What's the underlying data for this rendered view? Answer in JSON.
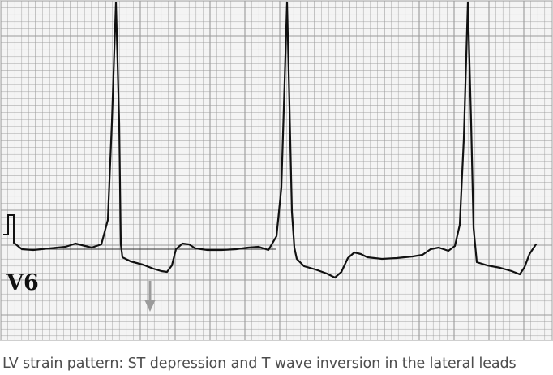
{
  "strip": {
    "lead_label": "V6"
  },
  "caption": {
    "text": "LV strain pattern: ST depression and T wave inversion in the lateral leads"
  },
  "colors": {
    "paper": "#f4f4f4",
    "grid": "#9a9a9a",
    "trace": "#111111",
    "arrow": "#9b9b9b",
    "caption_text": "#4d4d4d"
  },
  "icons": {
    "marker": "down-arrow-icon"
  }
}
